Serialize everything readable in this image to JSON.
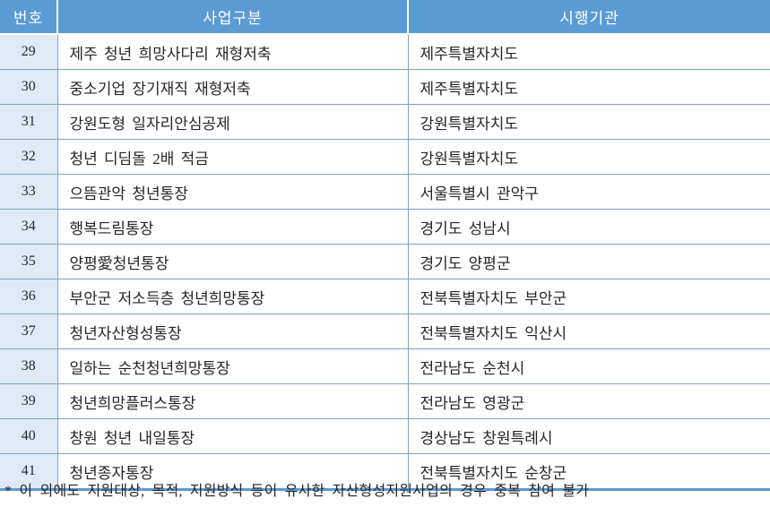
{
  "table": {
    "headers": {
      "no": "번호",
      "program": "사업구분",
      "agency": "시행기관"
    },
    "rows": [
      {
        "no": "29",
        "program": "제주 청년 희망사다리 재형저축",
        "agency": "제주특별자치도"
      },
      {
        "no": "30",
        "program": "중소기업 장기재직 재형저축",
        "agency": "제주특별자치도"
      },
      {
        "no": "31",
        "program": "강원도형 일자리안심공제",
        "agency": "강원특별자치도"
      },
      {
        "no": "32",
        "program": "청년 디딤돌 2배 적금",
        "agency": "강원특별자치도"
      },
      {
        "no": "33",
        "program": "으뜸관악 청년통장",
        "agency": "서울특별시 관악구"
      },
      {
        "no": "34",
        "program": "행복드림통장",
        "agency": "경기도 성남시"
      },
      {
        "no": "35",
        "program": "양평愛청년통장",
        "agency": "경기도 양평군"
      },
      {
        "no": "36",
        "program": "부안군 저소득층 청년희망통장",
        "agency": "전북특별자치도 부안군"
      },
      {
        "no": "37",
        "program": "청년자산형성통장",
        "agency": "전북특별자치도 익산시"
      },
      {
        "no": "38",
        "program": "일하는 순천청년희망통장",
        "agency": "전라남도 순천시"
      },
      {
        "no": "39",
        "program": "청년희망플러스통장",
        "agency": "전라남도 영광군"
      },
      {
        "no": "40",
        "program": "창원 청년 내일통장",
        "agency": "경상남도 창원특례시"
      },
      {
        "no": "41",
        "program": "청년종자통장",
        "agency": "전북특별자치도 순창군"
      }
    ]
  },
  "footnote": "* 이 외에도 지원대상, 목적, 지원방식 등이 유사한 자산형성지원사업의 경우 중복 참여 불가",
  "colors": {
    "header_bg": "#5b9bd5",
    "header_text": "#ffffff",
    "number_col_bg": "#deebf7",
    "row_border": "#7fa1c0",
    "bottom_border": "#5b9bd5",
    "body_text": "#262626"
  }
}
